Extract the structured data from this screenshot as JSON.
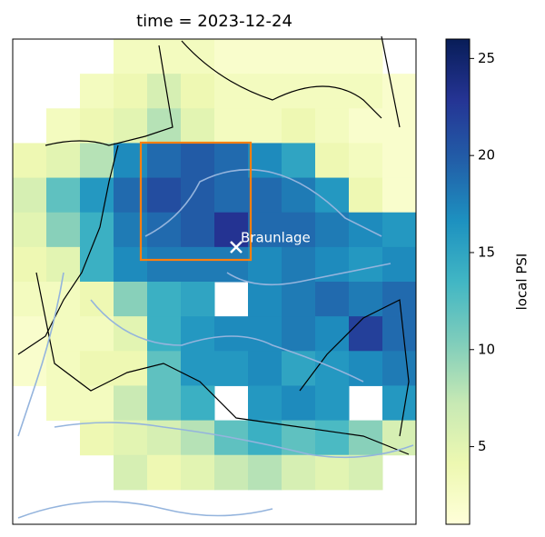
{
  "map": {
    "title": "time = 2023-12-24",
    "annotation": "Braunlage",
    "grid": {
      "values": [
        [
          null,
          null,
          null,
          3,
          3,
          3,
          2,
          2,
          2,
          2,
          2,
          null
        ],
        [
          null,
          null,
          3,
          4,
          6,
          4,
          3,
          3,
          3,
          3,
          3,
          2
        ],
        [
          null,
          3,
          4,
          5,
          8,
          5,
          3,
          3,
          4,
          3,
          2,
          2
        ],
        [
          4,
          5,
          8,
          17,
          19,
          20,
          19,
          17,
          15,
          4,
          3,
          2
        ],
        [
          6,
          12,
          16,
          19,
          21,
          20,
          19,
          19,
          18,
          16,
          4,
          2
        ],
        [
          5,
          10,
          14,
          18,
          19,
          20,
          23,
          19,
          19,
          18,
          17,
          16
        ],
        [
          4,
          5,
          14,
          17,
          18,
          18,
          18,
          17,
          18,
          17,
          16,
          17
        ],
        [
          3,
          3,
          4,
          10,
          14,
          15,
          null,
          17,
          18,
          19,
          18,
          19
        ],
        [
          2,
          3,
          3,
          5,
          14,
          16,
          17,
          17,
          18,
          17,
          22,
          19
        ],
        [
          2,
          3,
          4,
          4,
          12,
          16,
          16,
          17,
          15,
          16,
          17,
          18
        ],
        [
          null,
          3,
          3,
          7,
          12,
          14,
          null,
          16,
          17,
          16,
          null,
          16
        ],
        [
          null,
          null,
          4,
          5,
          6,
          8,
          12,
          14,
          12,
          13,
          10,
          6
        ],
        [
          null,
          null,
          null,
          6,
          4,
          5,
          7,
          8,
          6,
          5,
          6,
          null
        ],
        [
          null,
          null,
          null,
          null,
          null,
          null,
          null,
          null,
          null,
          null,
          null,
          null
        ]
      ]
    },
    "colormap": [
      "#ffffd9",
      "#edf8b1",
      "#c7e9b4",
      "#7fcdbb",
      "#41b6c4",
      "#1d91c0",
      "#225ea8",
      "#253494",
      "#081d58"
    ],
    "colorbar": {
      "label": "local PSI",
      "lim": [
        1,
        26
      ],
      "ticks": [
        5,
        10,
        15,
        20,
        25
      ]
    },
    "box_color": "#ff7f0e"
  }
}
